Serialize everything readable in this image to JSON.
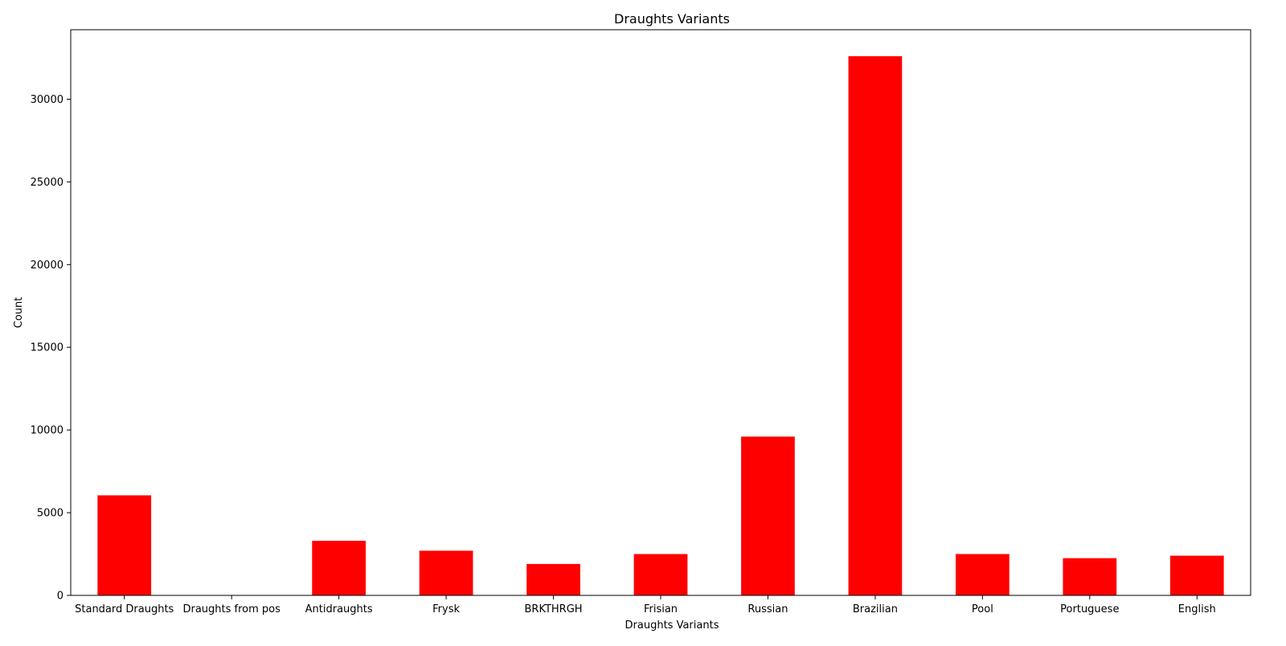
{
  "chart_data": {
    "type": "bar",
    "title": "Draughts Variants",
    "xlabel": "Draughts Variants",
    "ylabel": "Count",
    "categories": [
      "Standard Draughts",
      "Draughts from pos",
      "Antidraughts",
      "Frysk",
      "BRKTHRGH",
      "Frisian",
      "Russian",
      "Brazilian",
      "Pool",
      "Portuguese",
      "English"
    ],
    "values": [
      6050,
      20,
      3300,
      2700,
      1900,
      2500,
      9600,
      32600,
      2500,
      2250,
      2400
    ],
    "ylim": [
      0,
      34200
    ],
    "yticks": [
      0,
      5000,
      10000,
      15000,
      20000,
      25000,
      30000
    ],
    "ytick_labels": [
      "0",
      "5000",
      "10000",
      "15000",
      "20000",
      "25000",
      "30000"
    ],
    "bar_color": "#ff0000",
    "grid": false
  }
}
